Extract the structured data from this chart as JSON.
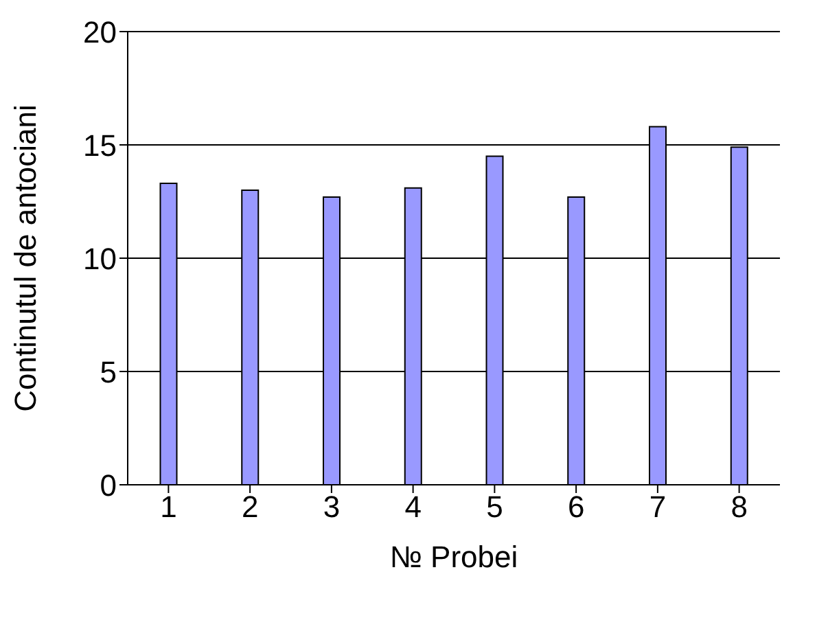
{
  "chart_data": {
    "type": "bar",
    "xlabel": "№ Probei",
    "ylabel": "Continutul de antociani",
    "categories": [
      "1",
      "2",
      "3",
      "4",
      "5",
      "6",
      "7",
      "8"
    ],
    "values": [
      13.3,
      13.0,
      12.7,
      13.1,
      14.5,
      12.7,
      15.8,
      14.9
    ],
    "color": "#9999ff",
    "ylim": [
      0,
      20
    ],
    "yticks": [
      0,
      5,
      10,
      15,
      20
    ],
    "grid": "y"
  }
}
